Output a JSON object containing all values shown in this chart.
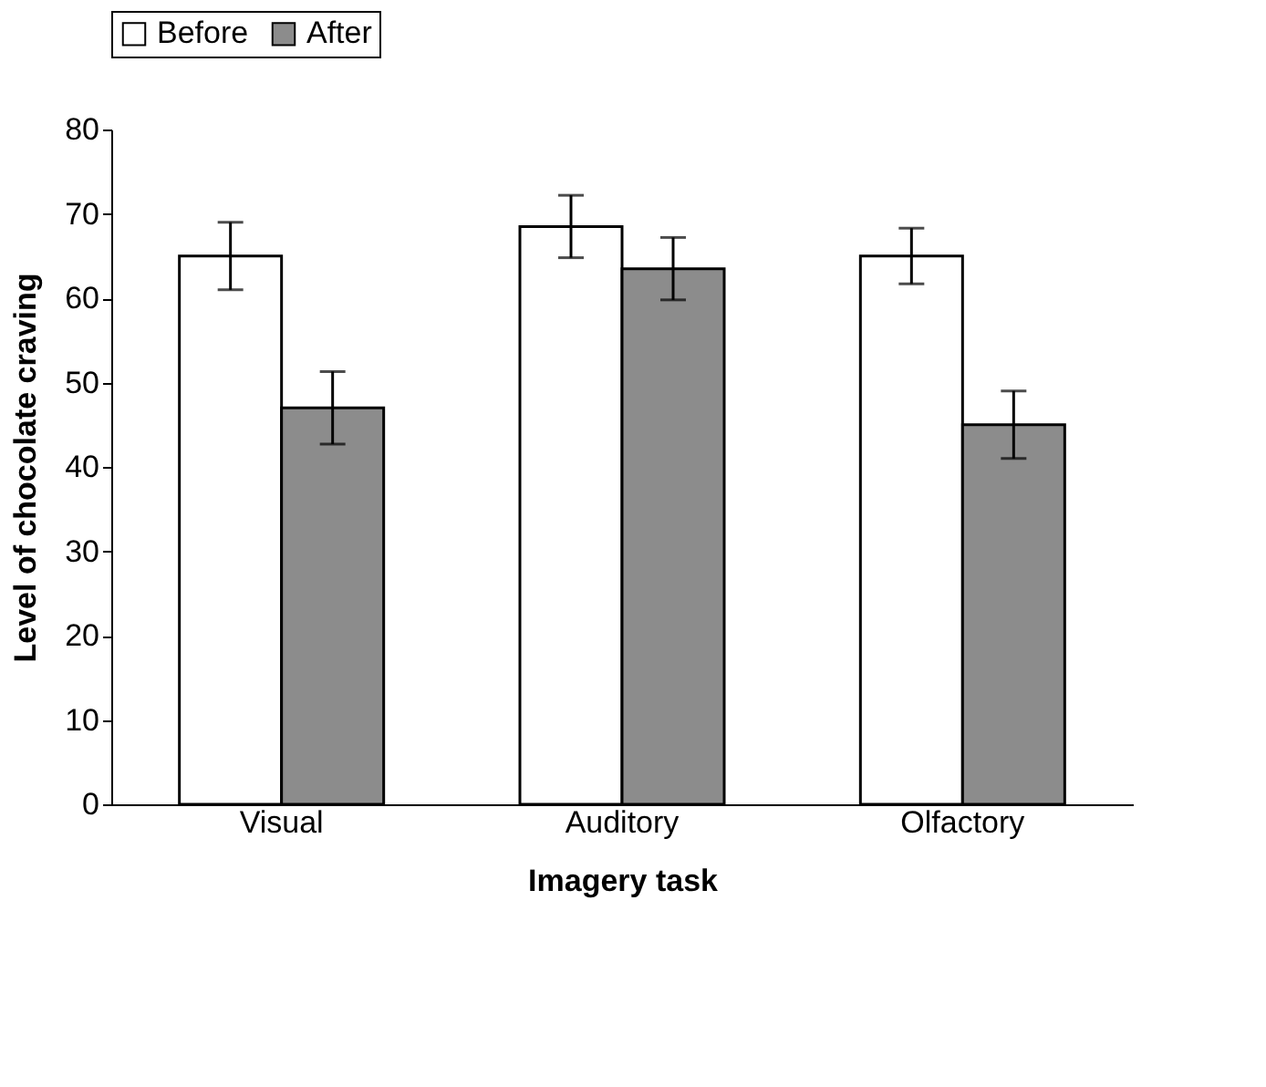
{
  "chart_data": {
    "type": "bar",
    "xlabel": "Imagery task",
    "ylabel": "Level of chocolate craving",
    "categories": [
      "Visual",
      "Auditory",
      "Olfactory"
    ],
    "series": [
      {
        "name": "Before",
        "color": "#ffffff",
        "values": [
          65,
          68.5,
          65
        ],
        "errors": [
          4,
          3.7,
          3.3
        ]
      },
      {
        "name": "After",
        "color": "#8c8c8c",
        "values": [
          47,
          63.5,
          45
        ],
        "errors": [
          4.3,
          3.7,
          4
        ]
      }
    ],
    "ylim": [
      0,
      80
    ],
    "yticks": [
      0,
      10,
      20,
      30,
      40,
      50,
      60,
      70,
      80
    ],
    "grid": false,
    "legend": "top"
  }
}
